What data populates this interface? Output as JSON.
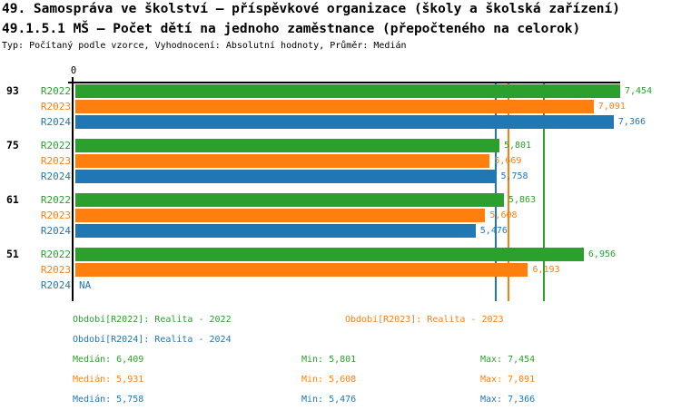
{
  "header": {
    "title1": "49. Samospráva ve školství – příspěvkové organizace (školy a školská zařízení)",
    "title2": "49.1.5.1 MŠ – Počet dětí na jednoho zaměstnance (přepočteného na celorok)",
    "meta": "Typ: Počítaný podle vzorce, Vyhodnocení: Absolutní hodnoty, Průměr: Medián"
  },
  "chart_data": {
    "type": "bar",
    "orientation": "horizontal",
    "categories": [
      "93",
      "75",
      "61",
      "51"
    ],
    "x_axis": {
      "tick_labels": [
        "0"
      ],
      "xmax": 7.454
    },
    "na_label": "NA",
    "series": [
      {
        "name": "R2022",
        "color": "#2ca02c",
        "values": [
          7.454,
          5.801,
          5.863,
          6.956
        ],
        "value_labels": [
          "7,454",
          "5,801",
          "5,863",
          "6,956"
        ],
        "median": 6.409
      },
      {
        "name": "R2023",
        "color": "#ff7f0e",
        "values": [
          7.091,
          5.669,
          5.608,
          6.193
        ],
        "value_labels": [
          "7,091",
          "5,669",
          "5,608",
          "6,193"
        ],
        "median": 5.931
      },
      {
        "name": "R2024",
        "color": "#1f77b4",
        "values": [
          7.366,
          5.758,
          5.476,
          null
        ],
        "value_labels": [
          "7,366",
          "5,758",
          "5,476",
          "NA"
        ],
        "median": 5.758
      }
    ]
  },
  "legend": {
    "items": [
      {
        "text": "Období[R2022]: Realita - 2022",
        "color": "#2ca02c"
      },
      {
        "text": "Období[R2023]: Realita - 2023",
        "color": "#ff7f0e"
      },
      {
        "text": "Období[R2024]: Realita - 2024",
        "color": "#1f77b4"
      }
    ],
    "stats": [
      {
        "median": "Medián: 6,409",
        "min": "Min: 5,801",
        "max": "Max: 7,454",
        "color": "#2ca02c"
      },
      {
        "median": "Medián: 5,931",
        "min": "Min: 5,608",
        "max": "Max: 7,091",
        "color": "#ff7f0e"
      },
      {
        "median": "Medián: 5,758",
        "min": "Min: 5,476",
        "max": "Max: 7,366",
        "color": "#1f77b4"
      }
    ]
  }
}
